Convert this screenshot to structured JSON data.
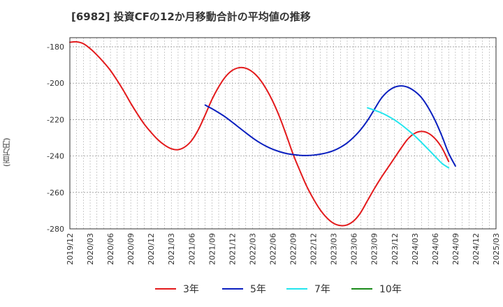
{
  "chart_title": "[6982]  投資CFの12か月移動合計の平均値の推移",
  "y_unit": "(百万円)",
  "chart_data": {
    "type": "line",
    "title": "[6982]  投資CFの12か月移動合計の平均値の推移",
    "ylabel": "(百万円)",
    "xlabel": "",
    "ylim": [
      -280,
      -175
    ],
    "y_ticks": [
      -180,
      -200,
      -220,
      -240,
      -260,
      -280
    ],
    "y_tick_labels": [
      "-180",
      "-200",
      "-220",
      "-240",
      "-260",
      "-280"
    ],
    "x_range": [
      "2019/12",
      "2025/03"
    ],
    "x_tick_labels": [
      "2019/12",
      "2020/03",
      "2020/06",
      "2020/09",
      "2020/12",
      "2021/03",
      "2021/06",
      "2021/09",
      "2021/12",
      "2022/03",
      "2022/06",
      "2022/09",
      "2022/12",
      "2023/03",
      "2023/06",
      "2023/09",
      "2023/12",
      "2024/03",
      "2024/06",
      "2024/09",
      "2024/12",
      "2025/03"
    ],
    "grid": true,
    "legend_position": "bottom",
    "series": [
      {
        "name": "3年",
        "color": "#e31a1c",
        "points": [
          [
            "2019/12",
            -177.5
          ],
          [
            "2020/01",
            -177.3
          ],
          [
            "2020/02",
            -178.3
          ],
          [
            "2020/03",
            -181.0
          ],
          [
            "2020/04",
            -184.5
          ],
          [
            "2020/05",
            -188.5
          ],
          [
            "2020/06",
            -193.0
          ],
          [
            "2020/07",
            -198.5
          ],
          [
            "2020/08",
            -204.5
          ],
          [
            "2020/09",
            -211.0
          ],
          [
            "2020/10",
            -217.0
          ],
          [
            "2020/11",
            -222.5
          ],
          [
            "2020/12",
            -227.0
          ],
          [
            "2021/01",
            -231.0
          ],
          [
            "2021/02",
            -234.0
          ],
          [
            "2021/03",
            -236.0
          ],
          [
            "2021/04",
            -236.5
          ],
          [
            "2021/05",
            -235.0
          ],
          [
            "2021/06",
            -231.5
          ],
          [
            "2021/07",
            -225.5
          ],
          [
            "2021/08",
            -217.5
          ],
          [
            "2021/09",
            -209.0
          ],
          [
            "2021/10",
            -202.0
          ],
          [
            "2021/11",
            -196.5
          ],
          [
            "2021/12",
            -193.0
          ],
          [
            "2022/01",
            -191.5
          ],
          [
            "2022/02",
            -191.8
          ],
          [
            "2022/03",
            -193.8
          ],
          [
            "2022/04",
            -197.5
          ],
          [
            "2022/05",
            -203.0
          ],
          [
            "2022/06",
            -210.0
          ],
          [
            "2022/07",
            -218.5
          ],
          [
            "2022/08",
            -228.5
          ],
          [
            "2022/09",
            -239.0
          ],
          [
            "2022/10",
            -248.0
          ],
          [
            "2022/11",
            -256.5
          ],
          [
            "2022/12",
            -263.5
          ],
          [
            "2023/01",
            -269.5
          ],
          [
            "2023/02",
            -274.0
          ],
          [
            "2023/03",
            -277.0
          ],
          [
            "2023/04",
            -278.2
          ],
          [
            "2023/05",
            -277.8
          ],
          [
            "2023/06",
            -275.5
          ],
          [
            "2023/07",
            -271.0
          ],
          [
            "2023/08",
            -264.5
          ],
          [
            "2023/09",
            -258.0
          ],
          [
            "2023/10",
            -252.0
          ],
          [
            "2023/11",
            -246.5
          ],
          [
            "2023/12",
            -241.0
          ],
          [
            "2024/01",
            -235.5
          ],
          [
            "2024/02",
            -230.5
          ],
          [
            "2024/03",
            -227.5
          ],
          [
            "2024/04",
            -226.5
          ],
          [
            "2024/05",
            -227.5
          ],
          [
            "2024/06",
            -230.5
          ],
          [
            "2024/07",
            -235.5
          ],
          [
            "2024/08",
            -243.0
          ]
        ]
      },
      {
        "name": "5年",
        "color": "#0a1fbf",
        "points": [
          [
            "2021/08",
            -212.0
          ],
          [
            "2021/09",
            -214.0
          ],
          [
            "2021/10",
            -216.2
          ],
          [
            "2021/11",
            -218.6
          ],
          [
            "2021/12",
            -221.4
          ],
          [
            "2022/01",
            -224.3
          ],
          [
            "2022/02",
            -227.2
          ],
          [
            "2022/03",
            -230.0
          ],
          [
            "2022/04",
            -232.5
          ],
          [
            "2022/05",
            -234.6
          ],
          [
            "2022/06",
            -236.3
          ],
          [
            "2022/07",
            -237.6
          ],
          [
            "2022/08",
            -238.6
          ],
          [
            "2022/09",
            -239.2
          ],
          [
            "2022/10",
            -239.6
          ],
          [
            "2022/11",
            -239.7
          ],
          [
            "2022/12",
            -239.5
          ],
          [
            "2023/01",
            -239.0
          ],
          [
            "2023/02",
            -238.2
          ],
          [
            "2023/03",
            -237.0
          ],
          [
            "2023/04",
            -235.2
          ],
          [
            "2023/05",
            -232.8
          ],
          [
            "2023/06",
            -229.5
          ],
          [
            "2023/07",
            -225.5
          ],
          [
            "2023/08",
            -220.5
          ],
          [
            "2023/09",
            -214.5
          ],
          [
            "2023/10",
            -208.5
          ],
          [
            "2023/11",
            -204.5
          ],
          [
            "2023/12",
            -202.2
          ],
          [
            "2024/01",
            -201.5
          ],
          [
            "2024/02",
            -202.3
          ],
          [
            "2024/03",
            -204.5
          ],
          [
            "2024/04",
            -208.0
          ],
          [
            "2024/05",
            -213.5
          ],
          [
            "2024/06",
            -220.5
          ],
          [
            "2024/07",
            -229.0
          ],
          [
            "2024/08",
            -238.5
          ],
          [
            "2024/09",
            -245.5
          ]
        ]
      },
      {
        "name": "7年",
        "color": "#22e5ee",
        "points": [
          [
            "2023/08",
            -213.5
          ],
          [
            "2023/09",
            -214.8
          ],
          [
            "2023/10",
            -216.2
          ],
          [
            "2023/11",
            -218.0
          ],
          [
            "2023/12",
            -220.2
          ],
          [
            "2024/01",
            -222.8
          ],
          [
            "2024/02",
            -225.8
          ],
          [
            "2024/03",
            -229.0
          ],
          [
            "2024/04",
            -232.6
          ],
          [
            "2024/05",
            -236.4
          ],
          [
            "2024/06",
            -240.2
          ],
          [
            "2024/07",
            -244.0
          ],
          [
            "2024/08",
            -246.5
          ]
        ]
      },
      {
        "name": "10年",
        "color": "#1a8a1a",
        "points": []
      }
    ]
  }
}
